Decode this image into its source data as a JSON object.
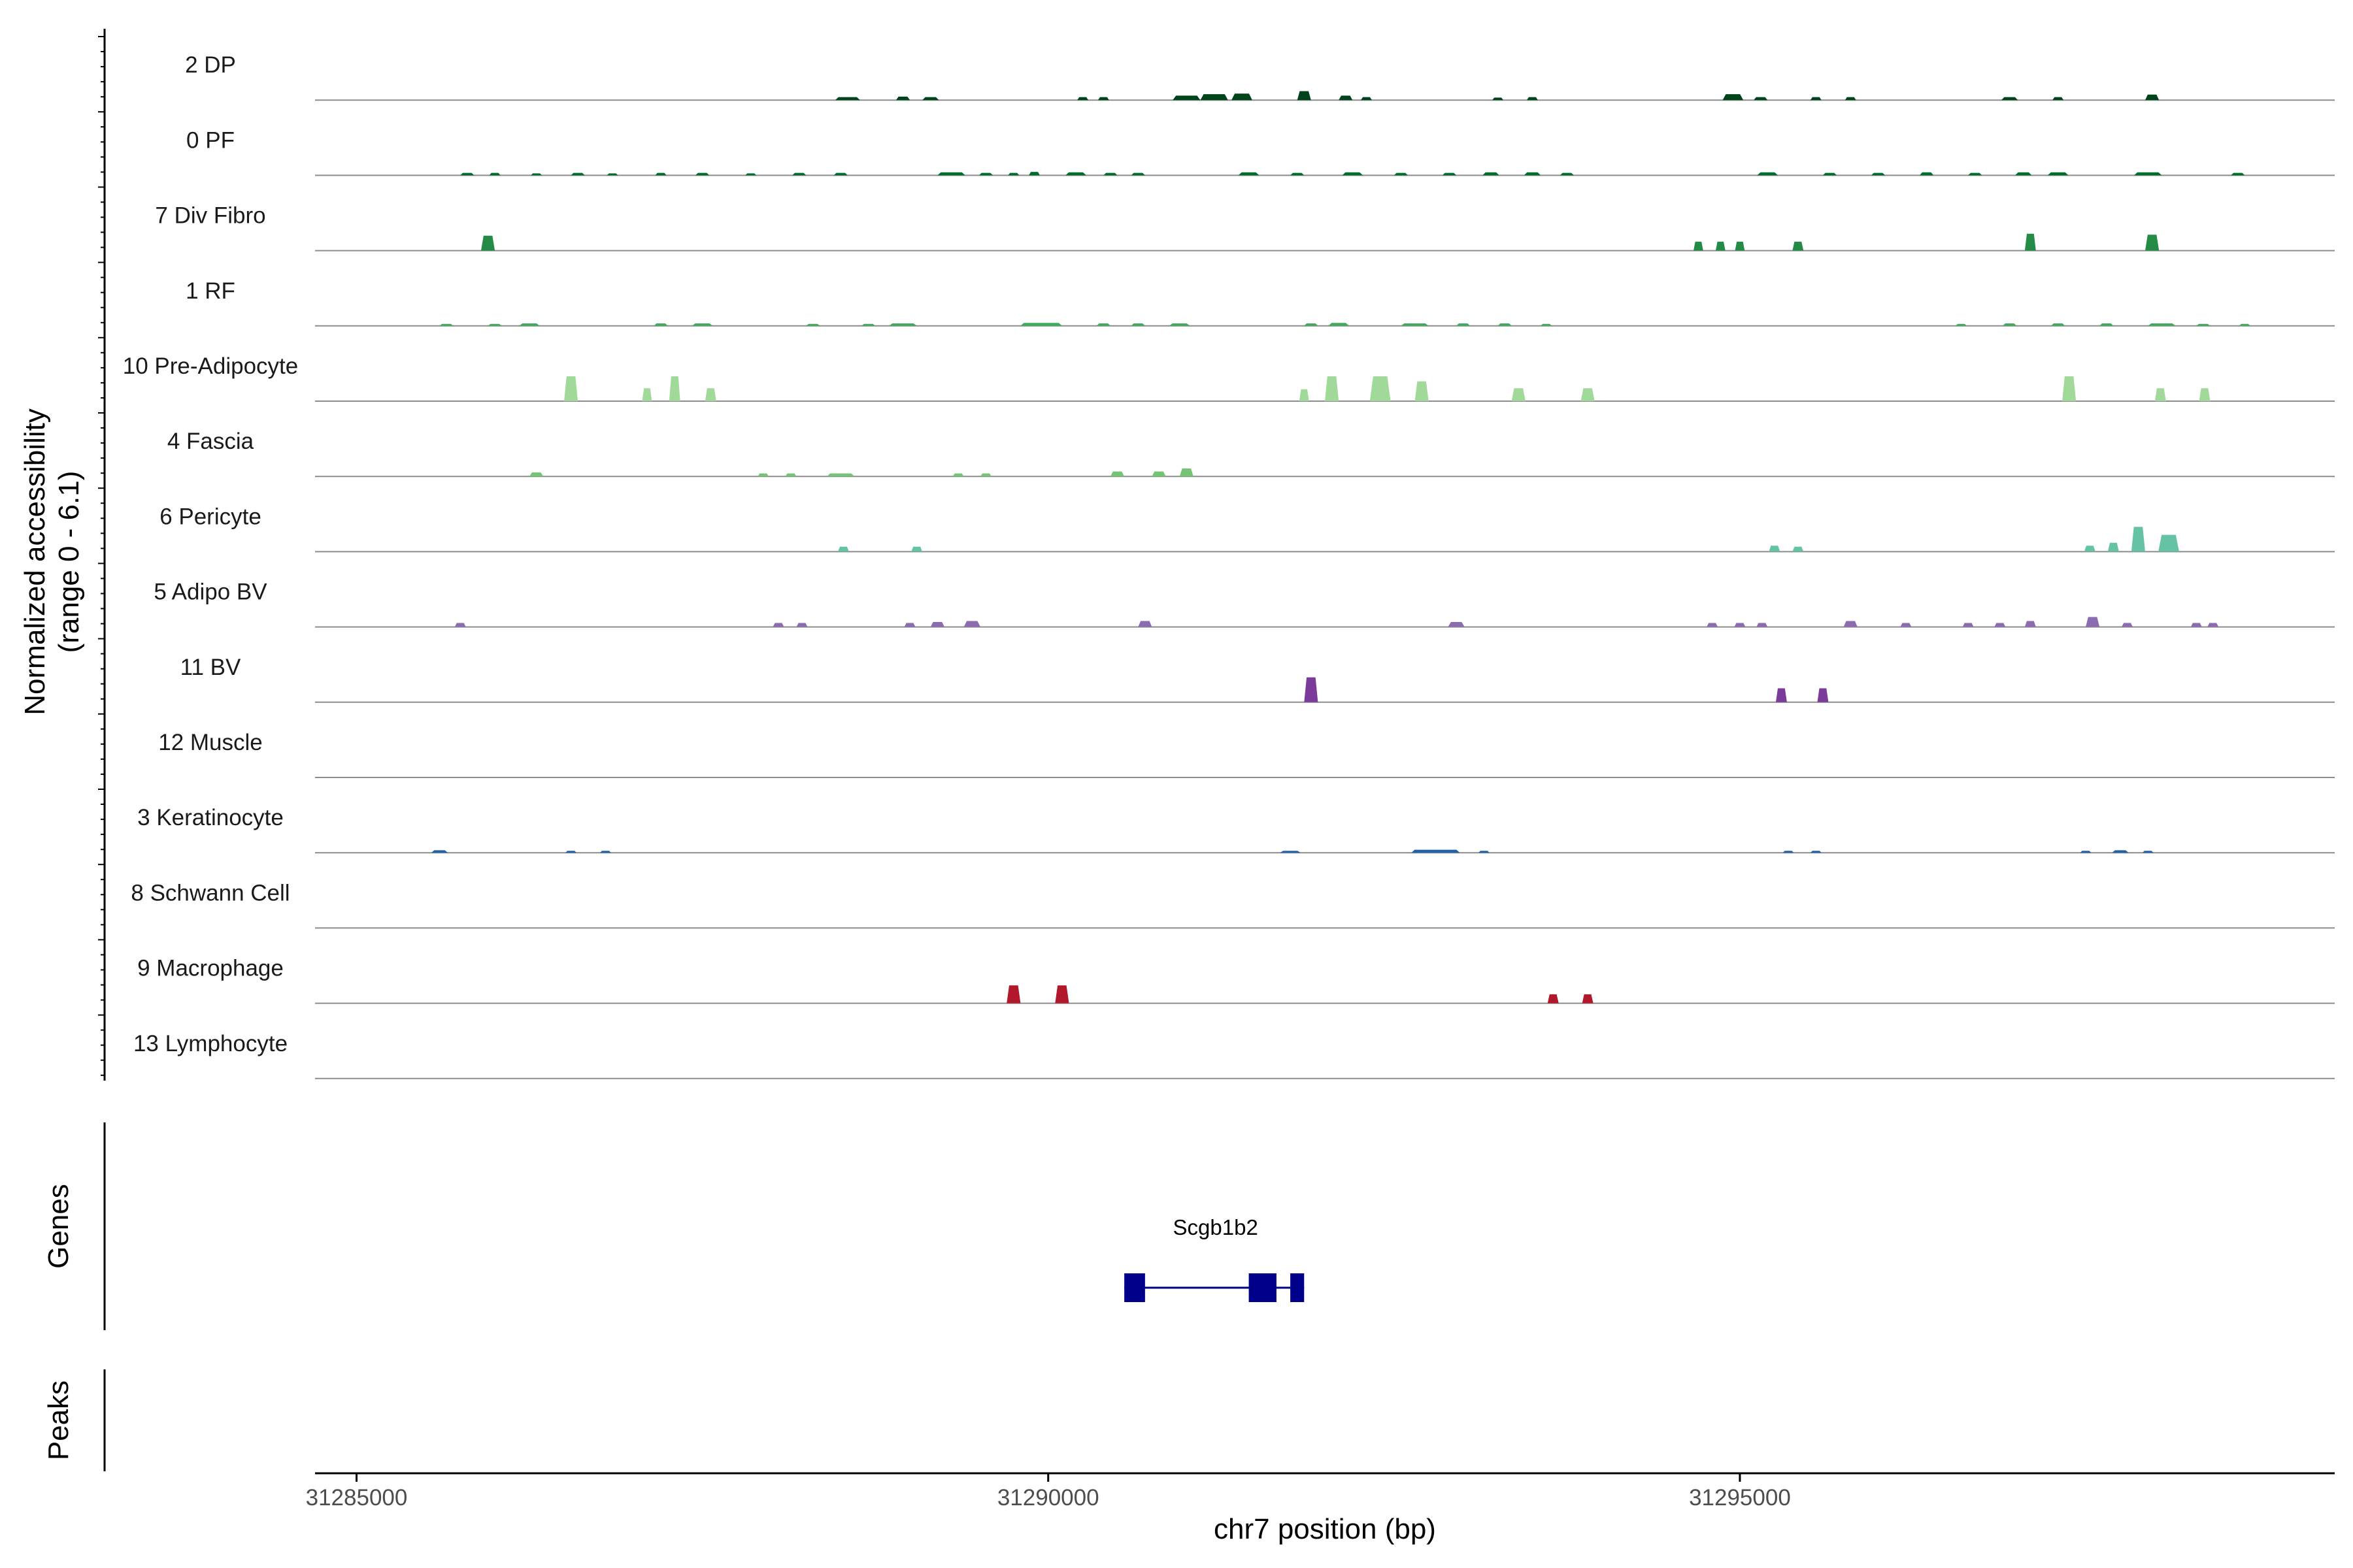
{
  "chart_data": {
    "type": "area",
    "ylabel": "Normalized accessibility",
    "ylabel_sub": "(range 0 - 6.1)",
    "xlabel": "chr7 position (bp)",
    "xlim": [
      31284700,
      31299300
    ],
    "ylim": [
      0,
      6.1
    ],
    "x_ticks": [
      31285000,
      31290000,
      31295000
    ],
    "x_tick_labels": [
      "31285000",
      "31290000",
      "31295000"
    ],
    "section_labels": {
      "genes": "Genes",
      "peaks": "Peaks"
    },
    "tracks": [
      {
        "name": "2 DP",
        "color": "#00441B",
        "peaks": [
          [
            31288550,
            180,
            0.3
          ],
          [
            31288950,
            100,
            0.35
          ],
          [
            31289150,
            120,
            0.3
          ],
          [
            31290250,
            80,
            0.3
          ],
          [
            31290400,
            80,
            0.3
          ],
          [
            31291000,
            200,
            0.45
          ],
          [
            31291200,
            200,
            0.6
          ],
          [
            31291400,
            150,
            0.65
          ],
          [
            31291850,
            100,
            0.9
          ],
          [
            31292150,
            100,
            0.45
          ],
          [
            31292300,
            80,
            0.3
          ],
          [
            31293250,
            80,
            0.25
          ],
          [
            31293500,
            80,
            0.3
          ],
          [
            31294950,
            150,
            0.6
          ],
          [
            31295150,
            100,
            0.3
          ],
          [
            31295550,
            80,
            0.3
          ],
          [
            31295800,
            80,
            0.3
          ],
          [
            31296950,
            120,
            0.3
          ],
          [
            31297300,
            80,
            0.3
          ],
          [
            31297980,
            100,
            0.55
          ]
        ]
      },
      {
        "name": "0 PF",
        "color": "#006D2C",
        "peaks": [
          [
            31285800,
            100,
            0.25
          ],
          [
            31286000,
            80,
            0.25
          ],
          [
            31286300,
            80,
            0.2
          ],
          [
            31286600,
            100,
            0.25
          ],
          [
            31286850,
            80,
            0.2
          ],
          [
            31287200,
            80,
            0.25
          ],
          [
            31287500,
            100,
            0.25
          ],
          [
            31287850,
            80,
            0.2
          ],
          [
            31288200,
            100,
            0.25
          ],
          [
            31288500,
            100,
            0.25
          ],
          [
            31289300,
            200,
            0.3
          ],
          [
            31289550,
            100,
            0.25
          ],
          [
            31289750,
            80,
            0.25
          ],
          [
            31289900,
            80,
            0.35
          ],
          [
            31290200,
            150,
            0.3
          ],
          [
            31290450,
            100,
            0.25
          ],
          [
            31290650,
            100,
            0.25
          ],
          [
            31291450,
            150,
            0.3
          ],
          [
            31291800,
            100,
            0.25
          ],
          [
            31292200,
            150,
            0.3
          ],
          [
            31292550,
            100,
            0.25
          ],
          [
            31292900,
            100,
            0.25
          ],
          [
            31293200,
            120,
            0.3
          ],
          [
            31293500,
            120,
            0.3
          ],
          [
            31293750,
            100,
            0.25
          ],
          [
            31295200,
            150,
            0.3
          ],
          [
            31295650,
            100,
            0.25
          ],
          [
            31296000,
            100,
            0.25
          ],
          [
            31296350,
            100,
            0.3
          ],
          [
            31296700,
            100,
            0.25
          ],
          [
            31297050,
            120,
            0.3
          ],
          [
            31297300,
            150,
            0.3
          ],
          [
            31297950,
            200,
            0.3
          ],
          [
            31298600,
            100,
            0.25
          ]
        ]
      },
      {
        "name": "7 Div Fibro",
        "color": "#238B45",
        "peaks": [
          [
            31285950,
            100,
            1.5
          ],
          [
            31294700,
            70,
            0.9
          ],
          [
            31294860,
            70,
            0.9
          ],
          [
            31295000,
            70,
            0.9
          ],
          [
            31295420,
            80,
            0.9
          ],
          [
            31297100,
            80,
            1.7
          ],
          [
            31297980,
            100,
            1.6
          ]
        ]
      },
      {
        "name": "1 RF",
        "color": "#41AB5D",
        "peaks": [
          [
            31285650,
            100,
            0.2
          ],
          [
            31286000,
            100,
            0.2
          ],
          [
            31286250,
            150,
            0.25
          ],
          [
            31287200,
            100,
            0.25
          ],
          [
            31287500,
            150,
            0.25
          ],
          [
            31288300,
            100,
            0.2
          ],
          [
            31288700,
            100,
            0.2
          ],
          [
            31288950,
            200,
            0.25
          ],
          [
            31289950,
            300,
            0.3
          ],
          [
            31290400,
            100,
            0.25
          ],
          [
            31290650,
            100,
            0.25
          ],
          [
            31290950,
            150,
            0.25
          ],
          [
            31291900,
            100,
            0.25
          ],
          [
            31292100,
            150,
            0.3
          ],
          [
            31292650,
            200,
            0.25
          ],
          [
            31293000,
            100,
            0.25
          ],
          [
            31293300,
            100,
            0.25
          ],
          [
            31293600,
            80,
            0.2
          ],
          [
            31296600,
            80,
            0.2
          ],
          [
            31296950,
            100,
            0.25
          ],
          [
            31297300,
            100,
            0.25
          ],
          [
            31297650,
            100,
            0.25
          ],
          [
            31298050,
            200,
            0.25
          ],
          [
            31298350,
            100,
            0.2
          ],
          [
            31298650,
            80,
            0.2
          ]
        ]
      },
      {
        "name": "10 Pre-Adipocyte",
        "color": "#A1D99B",
        "peaks": [
          [
            31286550,
            100,
            2.5
          ],
          [
            31287100,
            70,
            1.3
          ],
          [
            31287300,
            80,
            2.5
          ],
          [
            31287560,
            80,
            1.3
          ],
          [
            31291850,
            70,
            1.2
          ],
          [
            31292050,
            100,
            2.5
          ],
          [
            31292400,
            150,
            2.5
          ],
          [
            31292700,
            100,
            2.0
          ],
          [
            31293400,
            100,
            1.3
          ],
          [
            31293900,
            100,
            1.3
          ],
          [
            31297380,
            100,
            2.5
          ],
          [
            31298040,
            80,
            1.3
          ],
          [
            31298360,
            80,
            1.3
          ]
        ]
      },
      {
        "name": "4 Fascia",
        "color": "#74C476",
        "peaks": [
          [
            31286300,
            100,
            0.4
          ],
          [
            31287940,
            80,
            0.3
          ],
          [
            31288140,
            80,
            0.3
          ],
          [
            31288500,
            200,
            0.3
          ],
          [
            31289350,
            80,
            0.3
          ],
          [
            31289550,
            80,
            0.3
          ],
          [
            31290500,
            100,
            0.5
          ],
          [
            31290800,
            100,
            0.5
          ],
          [
            31291000,
            100,
            0.8
          ]
        ]
      },
      {
        "name": "6 Pericyte",
        "color": "#66C2A4",
        "peaks": [
          [
            31288520,
            80,
            0.5
          ],
          [
            31289050,
            80,
            0.5
          ],
          [
            31295250,
            80,
            0.6
          ],
          [
            31295420,
            80,
            0.5
          ],
          [
            31297530,
            80,
            0.6
          ],
          [
            31297700,
            80,
            0.9
          ],
          [
            31297880,
            100,
            2.5
          ],
          [
            31298100,
            150,
            1.7
          ]
        ]
      },
      {
        "name": "5 Adipo BV",
        "color": "#8C6BB1",
        "peaks": [
          [
            31285750,
            80,
            0.4
          ],
          [
            31288050,
            80,
            0.4
          ],
          [
            31288220,
            80,
            0.4
          ],
          [
            31289000,
            80,
            0.4
          ],
          [
            31289200,
            100,
            0.5
          ],
          [
            31289450,
            120,
            0.6
          ],
          [
            31290700,
            100,
            0.6
          ],
          [
            31292950,
            120,
            0.5
          ],
          [
            31294800,
            80,
            0.4
          ],
          [
            31295000,
            80,
            0.4
          ],
          [
            31295160,
            80,
            0.4
          ],
          [
            31295800,
            100,
            0.6
          ],
          [
            31296200,
            80,
            0.4
          ],
          [
            31296650,
            80,
            0.4
          ],
          [
            31296880,
            80,
            0.4
          ],
          [
            31297100,
            80,
            0.6
          ],
          [
            31297550,
            100,
            1.0
          ],
          [
            31297800,
            80,
            0.4
          ],
          [
            31298300,
            80,
            0.4
          ],
          [
            31298420,
            80,
            0.4
          ]
        ]
      },
      {
        "name": "11 BV",
        "color": "#7A3B9A",
        "peaks": [
          [
            31291900,
            100,
            2.5
          ],
          [
            31295300,
            80,
            1.4
          ],
          [
            31295600,
            80,
            1.4
          ]
        ]
      },
      {
        "name": "12 Muscle",
        "color": "#8C96C6",
        "peaks": []
      },
      {
        "name": "3 Keratinocyte",
        "color": "#2161A8",
        "peaks": [
          [
            31285600,
            120,
            0.25
          ],
          [
            31286550,
            80,
            0.2
          ],
          [
            31286800,
            80,
            0.2
          ],
          [
            31291750,
            150,
            0.2
          ],
          [
            31292800,
            350,
            0.3
          ],
          [
            31293150,
            80,
            0.2
          ],
          [
            31295350,
            80,
            0.2
          ],
          [
            31295550,
            80,
            0.2
          ],
          [
            31297500,
            80,
            0.2
          ],
          [
            31297750,
            120,
            0.25
          ],
          [
            31297950,
            80,
            0.2
          ]
        ]
      },
      {
        "name": "8 Schwann Cell",
        "color": "#4292C6",
        "peaks": []
      },
      {
        "name": "9 Macrophage",
        "color": "#B2182B",
        "peaks": [
          [
            31289750,
            100,
            1.8
          ],
          [
            31290100,
            100,
            1.8
          ],
          [
            31293650,
            80,
            0.9
          ],
          [
            31293900,
            80,
            0.9
          ]
        ]
      },
      {
        "name": "13 Lymphocyte",
        "color": "#E7298A",
        "peaks": []
      }
    ],
    "genes": [
      {
        "name": "Scgb1b2",
        "color": "#00008B",
        "start": 31290550,
        "end": 31291850,
        "exons": [
          [
            31290550,
            31290700
          ],
          [
            31291450,
            31291650
          ],
          [
            31291750,
            31291850
          ]
        ]
      }
    ],
    "peaks": []
  }
}
